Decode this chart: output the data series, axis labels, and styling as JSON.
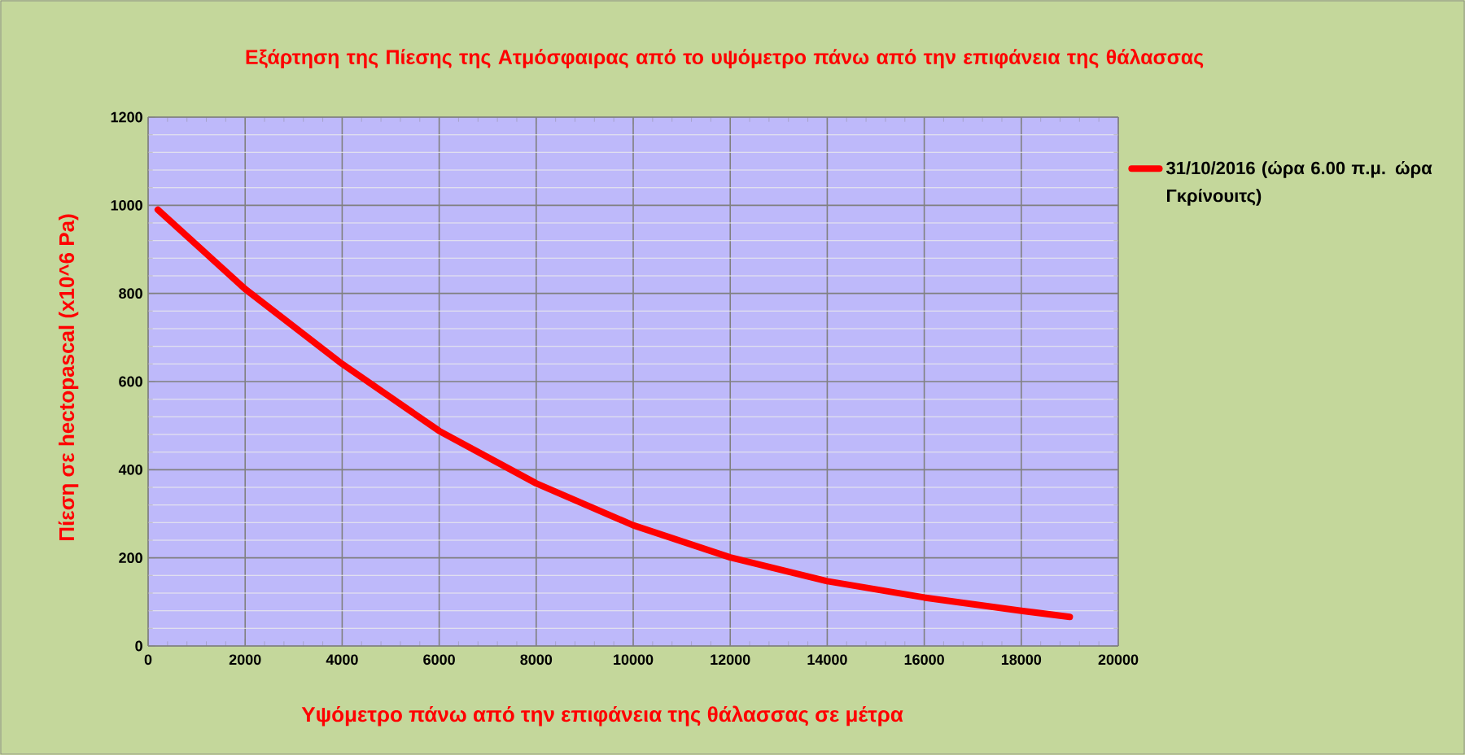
{
  "chart_data": {
    "type": "line",
    "title": "Εξάρτηση της Πίεσης της Ατμόσφαιρας από το υψόμετρο πάνω από την επιφάνεια της θάλασσας",
    "xlabel": "Υψόμετρο πάνω από την επιφάνεια της θάλασσας σε μέτρα",
    "ylabel": "Πίεση σε hectopascal (x10^6 Pa)",
    "x": [
      200,
      2000,
      4000,
      6000,
      8000,
      10000,
      12000,
      14000,
      16000,
      18000,
      19000
    ],
    "series": [
      {
        "name": "31/10/2016 (ώρα 6.00 π.μ. ώρα Γκρίνουιτς)",
        "color": "#ff0000",
        "values": [
          990,
          810,
          640,
          488,
          369,
          274,
          201,
          147,
          110,
          80,
          66
        ]
      }
    ],
    "xlim": [
      0,
      20000
    ],
    "ylim": [
      0,
      1200
    ],
    "xticks": [
      0,
      2000,
      4000,
      6000,
      8000,
      10000,
      12000,
      14000,
      16000,
      18000,
      20000
    ],
    "yticks": [
      0,
      200,
      400,
      600,
      800,
      1000,
      1200
    ],
    "grid": true,
    "legend": "right",
    "marker": "none",
    "line_style": "solid"
  }
}
